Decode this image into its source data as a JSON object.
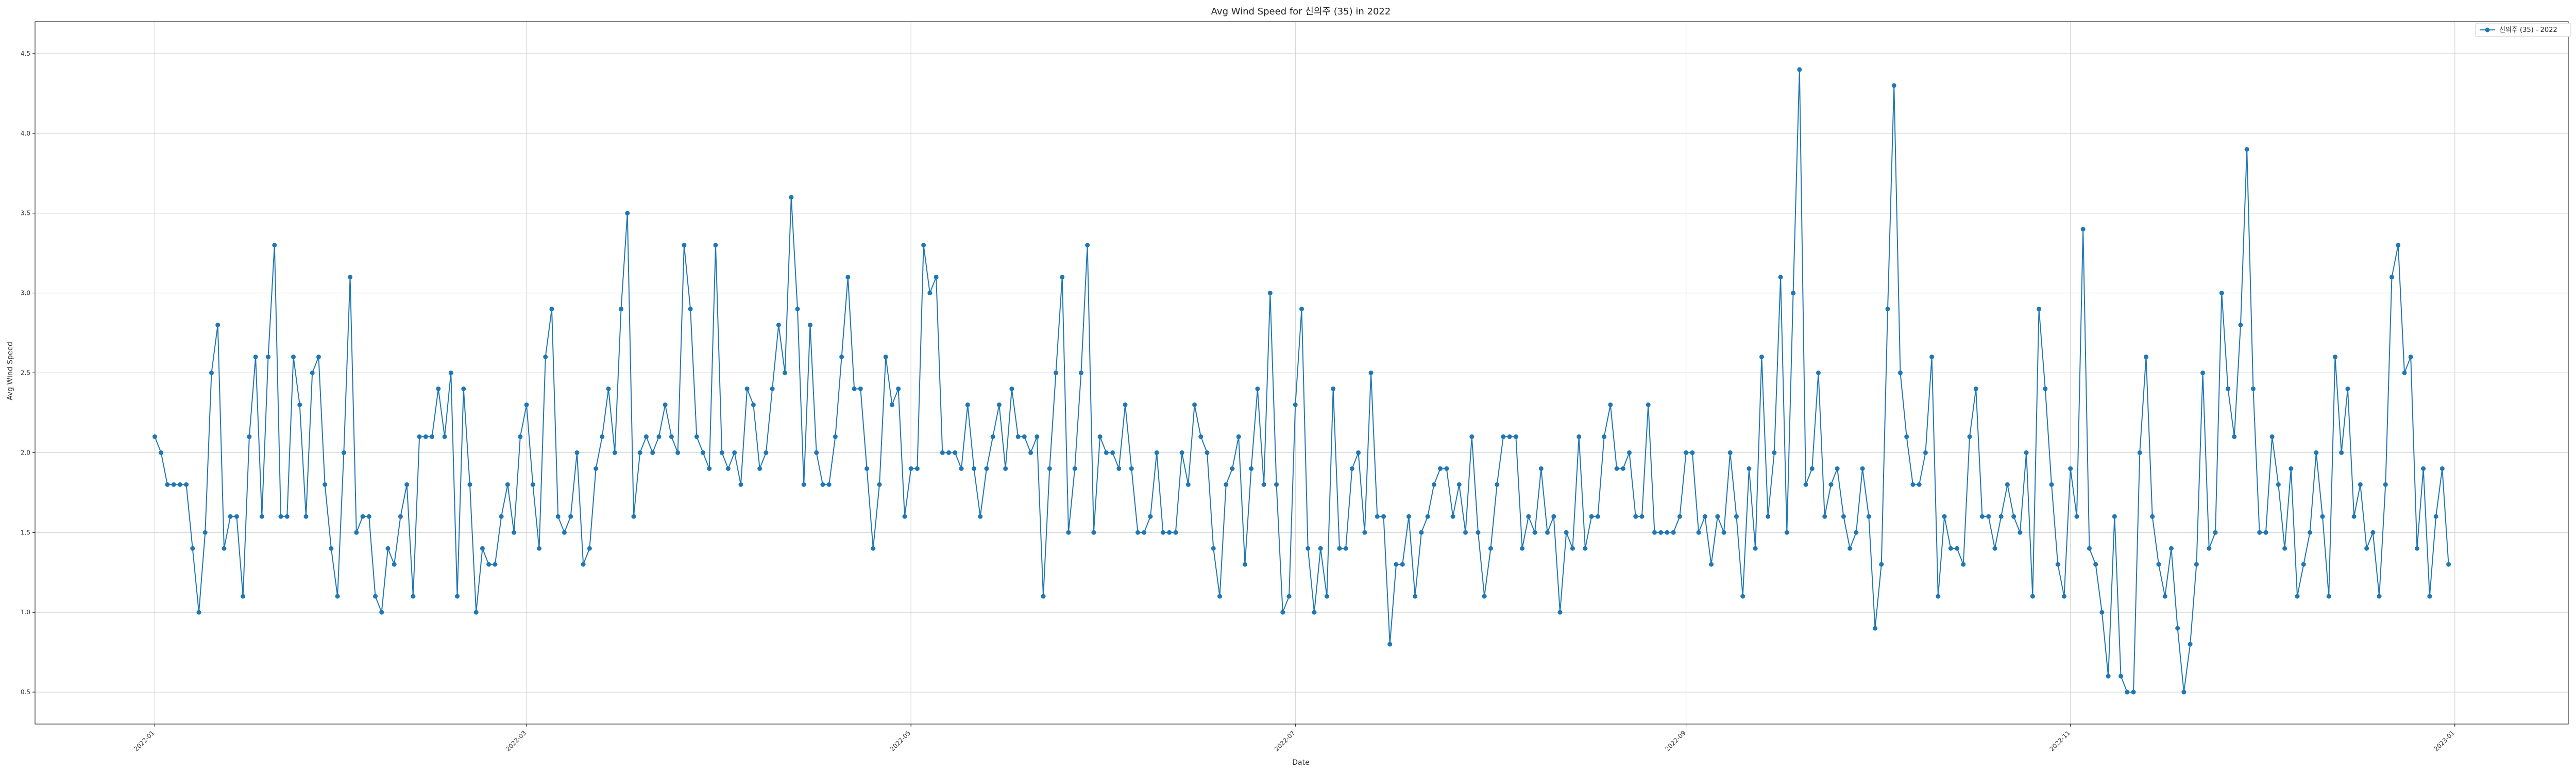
{
  "chart_data": {
    "type": "line",
    "title": "Avg Wind Speed for 신의주 (35) in 2022",
    "xlabel": "Date",
    "ylabel": "Avg Wind Speed",
    "x_start": "2022-01-01",
    "xlim": [
      "2021-12-13",
      "2023-01-19"
    ],
    "ylim": [
      0.3,
      4.7
    ],
    "y_ticks": [
      0.5,
      1.0,
      1.5,
      2.0,
      2.5,
      3.0,
      3.5,
      4.0,
      4.5
    ],
    "x_ticks": [
      "2022-01",
      "2022-03",
      "2022-05",
      "2022-07",
      "2022-09",
      "2022-11",
      "2023-01"
    ],
    "grid": true,
    "legend_position": "upper right",
    "colors": {
      "line": "#1f77b4",
      "grid": "#cccccc",
      "axis": "#000000"
    },
    "series": [
      {
        "name": "신의주 (35) - 2022",
        "values": [
          2.1,
          2.0,
          1.8,
          1.8,
          1.8,
          1.8,
          1.4,
          1.0,
          1.5,
          2.5,
          2.8,
          1.4,
          1.6,
          1.6,
          1.1,
          2.1,
          2.6,
          1.6,
          2.6,
          3.3,
          1.6,
          1.6,
          2.6,
          2.3,
          1.6,
          2.5,
          2.6,
          1.8,
          1.4,
          1.1,
          2.0,
          3.1,
          1.5,
          1.6,
          1.6,
          1.1,
          1.0,
          1.4,
          1.3,
          1.6,
          1.8,
          1.1,
          2.1,
          2.1,
          2.1,
          2.4,
          2.1,
          2.5,
          1.1,
          2.4,
          1.8,
          1.0,
          1.4,
          1.3,
          1.3,
          1.6,
          1.8,
          1.5,
          2.1,
          2.3,
          1.8,
          1.4,
          2.6,
          2.9,
          1.6,
          1.5,
          1.6,
          2.0,
          1.3,
          1.4,
          1.9,
          2.1,
          2.4,
          2.0,
          2.9,
          3.5,
          1.6,
          2.0,
          2.1,
          2.0,
          2.1,
          2.3,
          2.1,
          2.0,
          3.3,
          2.9,
          2.1,
          2.0,
          1.9,
          3.3,
          2.0,
          1.9,
          2.0,
          1.8,
          2.4,
          2.3,
          1.9,
          2.0,
          2.4,
          2.8,
          2.5,
          3.6,
          2.9,
          1.8,
          2.8,
          2.0,
          1.8,
          1.8,
          2.1,
          2.6,
          3.1,
          2.4,
          2.4,
          1.9,
          1.4,
          1.8,
          2.6,
          2.3,
          2.4,
          1.6,
          1.9,
          1.9,
          3.3,
          3.0,
          3.1,
          2.0,
          2.0,
          2.0,
          1.9,
          2.3,
          1.9,
          1.6,
          1.9,
          2.1,
          2.3,
          1.9,
          2.4,
          2.1,
          2.1,
          2.0,
          2.1,
          1.1,
          1.9,
          2.5,
          3.1,
          1.5,
          1.9,
          2.5,
          3.3,
          1.5,
          2.1,
          2.0,
          2.0,
          1.9,
          2.3,
          1.9,
          1.5,
          1.5,
          1.6,
          2.0,
          1.5,
          1.5,
          1.5,
          2.0,
          1.8,
          2.3,
          2.1,
          2.0,
          1.4,
          1.1,
          1.8,
          1.9,
          2.1,
          1.3,
          1.9,
          2.4,
          1.8,
          3.0,
          1.8,
          1.0,
          1.1,
          2.3,
          2.9,
          1.4,
          1.0,
          1.4,
          1.1,
          2.4,
          1.4,
          1.4,
          1.9,
          2.0,
          1.5,
          2.5,
          1.6,
          1.6,
          0.8,
          1.3,
          1.3,
          1.6,
          1.1,
          1.5,
          1.6,
          1.8,
          1.9,
          1.9,
          1.6,
          1.8,
          1.5,
          2.1,
          1.5,
          1.1,
          1.4,
          1.8,
          2.1,
          2.1,
          2.1,
          1.4,
          1.6,
          1.5,
          1.9,
          1.5,
          1.6,
          1.0,
          1.5,
          1.4,
          2.1,
          1.4,
          1.6,
          1.6,
          2.1,
          2.3,
          1.9,
          1.9,
          2.0,
          1.6,
          1.6,
          2.3,
          1.5,
          1.5,
          1.5,
          1.5,
          1.6,
          2.0,
          2.0,
          1.5,
          1.6,
          1.3,
          1.6,
          1.5,
          2.0,
          1.6,
          1.1,
          1.9,
          1.4,
          2.6,
          1.6,
          2.0,
          3.1,
          1.5,
          3.0,
          4.4,
          1.8,
          1.9,
          2.5,
          1.6,
          1.8,
          1.9,
          1.6,
          1.4,
          1.5,
          1.9,
          1.6,
          0.9,
          1.3,
          2.9,
          4.3,
          2.5,
          2.1,
          1.8,
          1.8,
          2.0,
          2.6,
          1.1,
          1.6,
          1.4,
          1.4,
          1.3,
          2.1,
          2.4,
          1.6,
          1.6,
          1.4,
          1.6,
          1.8,
          1.6,
          1.5,
          2.0,
          1.1,
          2.9,
          2.4,
          1.8,
          1.3,
          1.1,
          1.9,
          1.6,
          3.4,
          1.4,
          1.3,
          1.0,
          0.6,
          1.6,
          0.6,
          0.5,
          0.5,
          2.0,
          2.6,
          1.6,
          1.3,
          1.1,
          1.4,
          0.9,
          0.5,
          0.8,
          1.3,
          2.5,
          1.4,
          1.5,
          3.0,
          2.4,
          2.1,
          2.8,
          3.9,
          2.4,
          1.5,
          1.5,
          2.1,
          1.8,
          1.4,
          1.9,
          1.1,
          1.3,
          1.5,
          2.0,
          1.6,
          1.1,
          2.6,
          2.0,
          2.4,
          1.6,
          1.8,
          1.4,
          1.5,
          1.1,
          1.8,
          3.1,
          3.3,
          2.5,
          2.6,
          1.4,
          1.9,
          1.1,
          1.6,
          1.9,
          1.3
        ]
      }
    ]
  }
}
